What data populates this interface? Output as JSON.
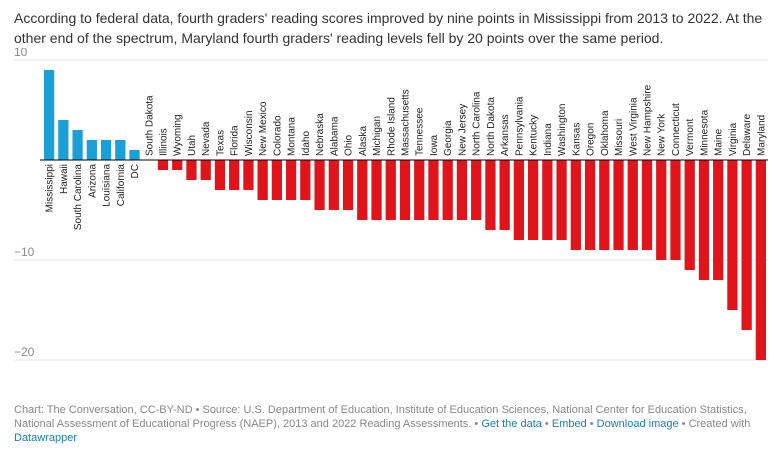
{
  "intro": "According to federal data, fourth graders' reading scores improved by nine points in Mississippi from 2013 to 2022. At the other end of the spectrum, Maryland fourth graders' reading levels fell by 20 points over the same period.",
  "footer": {
    "credit": "Chart: The Conversation, CC-BY-ND • Source: U.S. Department of Education, Institute of Education Sciences, National Center for Education Statistics, National Assessment of Educational Progress (NAEP), 2013 and 2022 Reading Assessments. • ",
    "get_data": "Get the data",
    "sep1": " • ",
    "embed": "Embed",
    "sep2": " • ",
    "download": "Download image",
    "created_with": " • Created with ",
    "datawrapper": "Datawrapper"
  },
  "colors": {
    "positive": "#1a9fd6",
    "negative": "#e0141b",
    "zero_line": "#000000",
    "grid": "#e6e6e6",
    "link": "#1d81a2"
  },
  "chart_data": {
    "type": "bar",
    "title": "",
    "xlabel": "",
    "ylabel": "",
    "ylim": [
      -21,
      10.5
    ],
    "yticks": [
      10,
      -10,
      -20
    ],
    "ytick_labels": [
      "10",
      "−10",
      "−20"
    ],
    "grid": true,
    "categories": [
      "Mississippi",
      "Hawaii",
      "South Carolina",
      "Arizona",
      "Louisiana",
      "California",
      "DC",
      "South Dakota",
      "Illinois",
      "Wyoming",
      "Utah",
      "Nevada",
      "Texas",
      "Florida",
      "Wisconsin",
      "New Mexico",
      "Colorado",
      "Montana",
      "Idaho",
      "Nebraska",
      "Alabama",
      "Ohio",
      "Alaska",
      "Michigan",
      "Rhode Island",
      "Massachusetts",
      "Tennessee",
      "Iowa",
      "Georgia",
      "New Jersey",
      "North Carolina",
      "North Dakota",
      "Arkansas",
      "Pennsylvania",
      "Kentucky",
      "Indiana",
      "Washington",
      "Kansas",
      "Oregon",
      "Oklahoma",
      "Missouri",
      "West Virginia",
      "New Hampshire",
      "New York",
      "Connecticut",
      "Vermont",
      "Minnesota",
      "Maine",
      "Virginia",
      "Delaware",
      "Maryland"
    ],
    "values": [
      9,
      4,
      3,
      2,
      2,
      2,
      1,
      0,
      -1,
      -1,
      -2,
      -2,
      -3,
      -3,
      -3,
      -4,
      -4,
      -4,
      -4,
      -5,
      -5,
      -5,
      -6,
      -6,
      -6,
      -6,
      -6,
      -6,
      -6,
      -6,
      -6,
      -7,
      -7,
      -8,
      -8,
      -8,
      -8,
      -9,
      -9,
      -9,
      -9,
      -9,
      -9,
      -10,
      -10,
      -11,
      -12,
      -12,
      -15,
      -17,
      -20
    ]
  }
}
